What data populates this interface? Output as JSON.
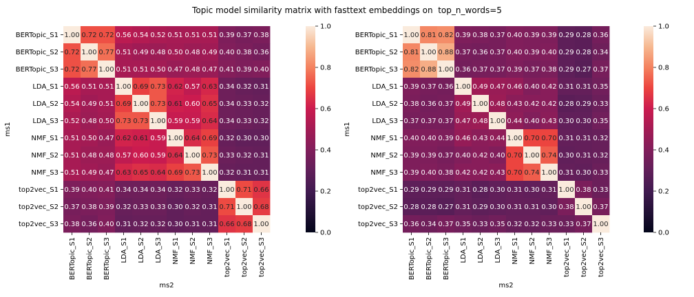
{
  "suptitle": "Topic model similarity matrix with fasttext embeddings on  top_n_words=5",
  "chart_data": [
    {
      "type": "heatmap",
      "xlabel": "ms2",
      "ylabel": "ms1",
      "x_labels": [
        "BERTopic_S1",
        "BERTopic_S2",
        "BERTopic_S3",
        "LDA_S1",
        "LDA_S2",
        "LDA_S3",
        "NMF_S1",
        "NMF_S2",
        "NMF_S3",
        "top2vec_S1",
        "top2vec_S2",
        "top2vec_S3"
      ],
      "y_labels": [
        "BERTopic_S1",
        "BERTopic_S2",
        "BERTopic_S3",
        "LDA_S1",
        "LDA_S2",
        "LDA_S3",
        "NMF_S1",
        "NMF_S2",
        "NMF_S3",
        "top2vec_S1",
        "top2vec_S2",
        "top2vec_S3"
      ],
      "values": [
        [
          1.0,
          0.72,
          0.72,
          0.56,
          0.54,
          0.52,
          0.51,
          0.51,
          0.51,
          0.39,
          0.37,
          0.38
        ],
        [
          0.72,
          1.0,
          0.77,
          0.51,
          0.49,
          0.48,
          0.5,
          0.48,
          0.49,
          0.4,
          0.38,
          0.36
        ],
        [
          0.72,
          0.77,
          1.0,
          0.51,
          0.51,
          0.5,
          0.47,
          0.48,
          0.47,
          0.41,
          0.39,
          0.4
        ],
        [
          0.56,
          0.51,
          0.51,
          1.0,
          0.69,
          0.73,
          0.62,
          0.57,
          0.63,
          0.34,
          0.32,
          0.31
        ],
        [
          0.54,
          0.49,
          0.51,
          0.69,
          1.0,
          0.73,
          0.61,
          0.6,
          0.65,
          0.34,
          0.33,
          0.32
        ],
        [
          0.52,
          0.48,
          0.5,
          0.73,
          0.73,
          1.0,
          0.59,
          0.59,
          0.64,
          0.34,
          0.33,
          0.32
        ],
        [
          0.51,
          0.5,
          0.47,
          0.62,
          0.61,
          0.59,
          1.0,
          0.64,
          0.69,
          0.32,
          0.3,
          0.3
        ],
        [
          0.51,
          0.48,
          0.48,
          0.57,
          0.6,
          0.59,
          0.64,
          1.0,
          0.73,
          0.33,
          0.32,
          0.31
        ],
        [
          0.51,
          0.49,
          0.47,
          0.63,
          0.65,
          0.64,
          0.69,
          0.73,
          1.0,
          0.32,
          0.31,
          0.31
        ],
        [
          0.39,
          0.4,
          0.41,
          0.34,
          0.34,
          0.34,
          0.32,
          0.33,
          0.32,
          1.0,
          0.71,
          0.66
        ],
        [
          0.37,
          0.38,
          0.39,
          0.32,
          0.33,
          0.33,
          0.3,
          0.32,
          0.31,
          0.71,
          1.0,
          0.68
        ],
        [
          0.38,
          0.36,
          0.4,
          0.31,
          0.32,
          0.32,
          0.3,
          0.31,
          0.31,
          0.66,
          0.68,
          1.0
        ]
      ],
      "vmin": 0.0,
      "vmax": 1.0,
      "colorbar_ticks": [
        "0.0",
        "0.2",
        "0.4",
        "0.6",
        "0.8",
        "1.0"
      ],
      "colormap": "rocket"
    },
    {
      "type": "heatmap",
      "xlabel": "ms2",
      "ylabel": "ms1",
      "x_labels": [
        "BERTopic_S1",
        "BERTopic_S2",
        "BERTopic_S3",
        "LDA_S1",
        "LDA_S2",
        "LDA_S3",
        "NMF_S1",
        "NMF_S2",
        "NMF_S3",
        "top2vec_S1",
        "top2vec_S2",
        "top2vec_S3"
      ],
      "y_labels": [
        "BERTopic_S1",
        "BERTopic_S2",
        "BERTopic_S3",
        "LDA_S1",
        "LDA_S2",
        "LDA_S3",
        "NMF_S1",
        "NMF_S2",
        "NMF_S3",
        "top2vec_S1",
        "top2vec_S2",
        "top2vec_S3"
      ],
      "values": [
        [
          1.0,
          0.81,
          0.82,
          0.39,
          0.38,
          0.37,
          0.4,
          0.39,
          0.39,
          0.29,
          0.28,
          0.36
        ],
        [
          0.81,
          1.0,
          0.88,
          0.37,
          0.36,
          0.37,
          0.4,
          0.39,
          0.4,
          0.29,
          0.28,
          0.34
        ],
        [
          0.82,
          0.88,
          1.0,
          0.36,
          0.37,
          0.37,
          0.39,
          0.37,
          0.38,
          0.29,
          0.27,
          0.37
        ],
        [
          0.39,
          0.37,
          0.36,
          1.0,
          0.49,
          0.47,
          0.46,
          0.4,
          0.42,
          0.31,
          0.31,
          0.35
        ],
        [
          0.38,
          0.36,
          0.37,
          0.49,
          1.0,
          0.48,
          0.43,
          0.42,
          0.42,
          0.28,
          0.29,
          0.33
        ],
        [
          0.37,
          0.37,
          0.37,
          0.47,
          0.48,
          1.0,
          0.44,
          0.4,
          0.43,
          0.3,
          0.3,
          0.35
        ],
        [
          0.4,
          0.4,
          0.39,
          0.46,
          0.43,
          0.44,
          1.0,
          0.7,
          0.7,
          0.31,
          0.31,
          0.32
        ],
        [
          0.39,
          0.39,
          0.37,
          0.4,
          0.42,
          0.4,
          0.7,
          1.0,
          0.74,
          0.3,
          0.31,
          0.32
        ],
        [
          0.39,
          0.4,
          0.38,
          0.42,
          0.42,
          0.43,
          0.7,
          0.74,
          1.0,
          0.31,
          0.3,
          0.33
        ],
        [
          0.29,
          0.29,
          0.29,
          0.31,
          0.28,
          0.3,
          0.31,
          0.3,
          0.31,
          1.0,
          0.38,
          0.33
        ],
        [
          0.28,
          0.28,
          0.27,
          0.31,
          0.29,
          0.3,
          0.31,
          0.31,
          0.3,
          0.38,
          1.0,
          0.37
        ],
        [
          0.36,
          0.34,
          0.37,
          0.35,
          0.33,
          0.35,
          0.32,
          0.32,
          0.33,
          0.33,
          0.37,
          1.0
        ]
      ],
      "vmin": 0.0,
      "vmax": 1.0,
      "colorbar_ticks": [
        "0.0",
        "0.2",
        "0.4",
        "0.6",
        "0.8",
        "1.0"
      ],
      "colormap": "rocket"
    }
  ]
}
